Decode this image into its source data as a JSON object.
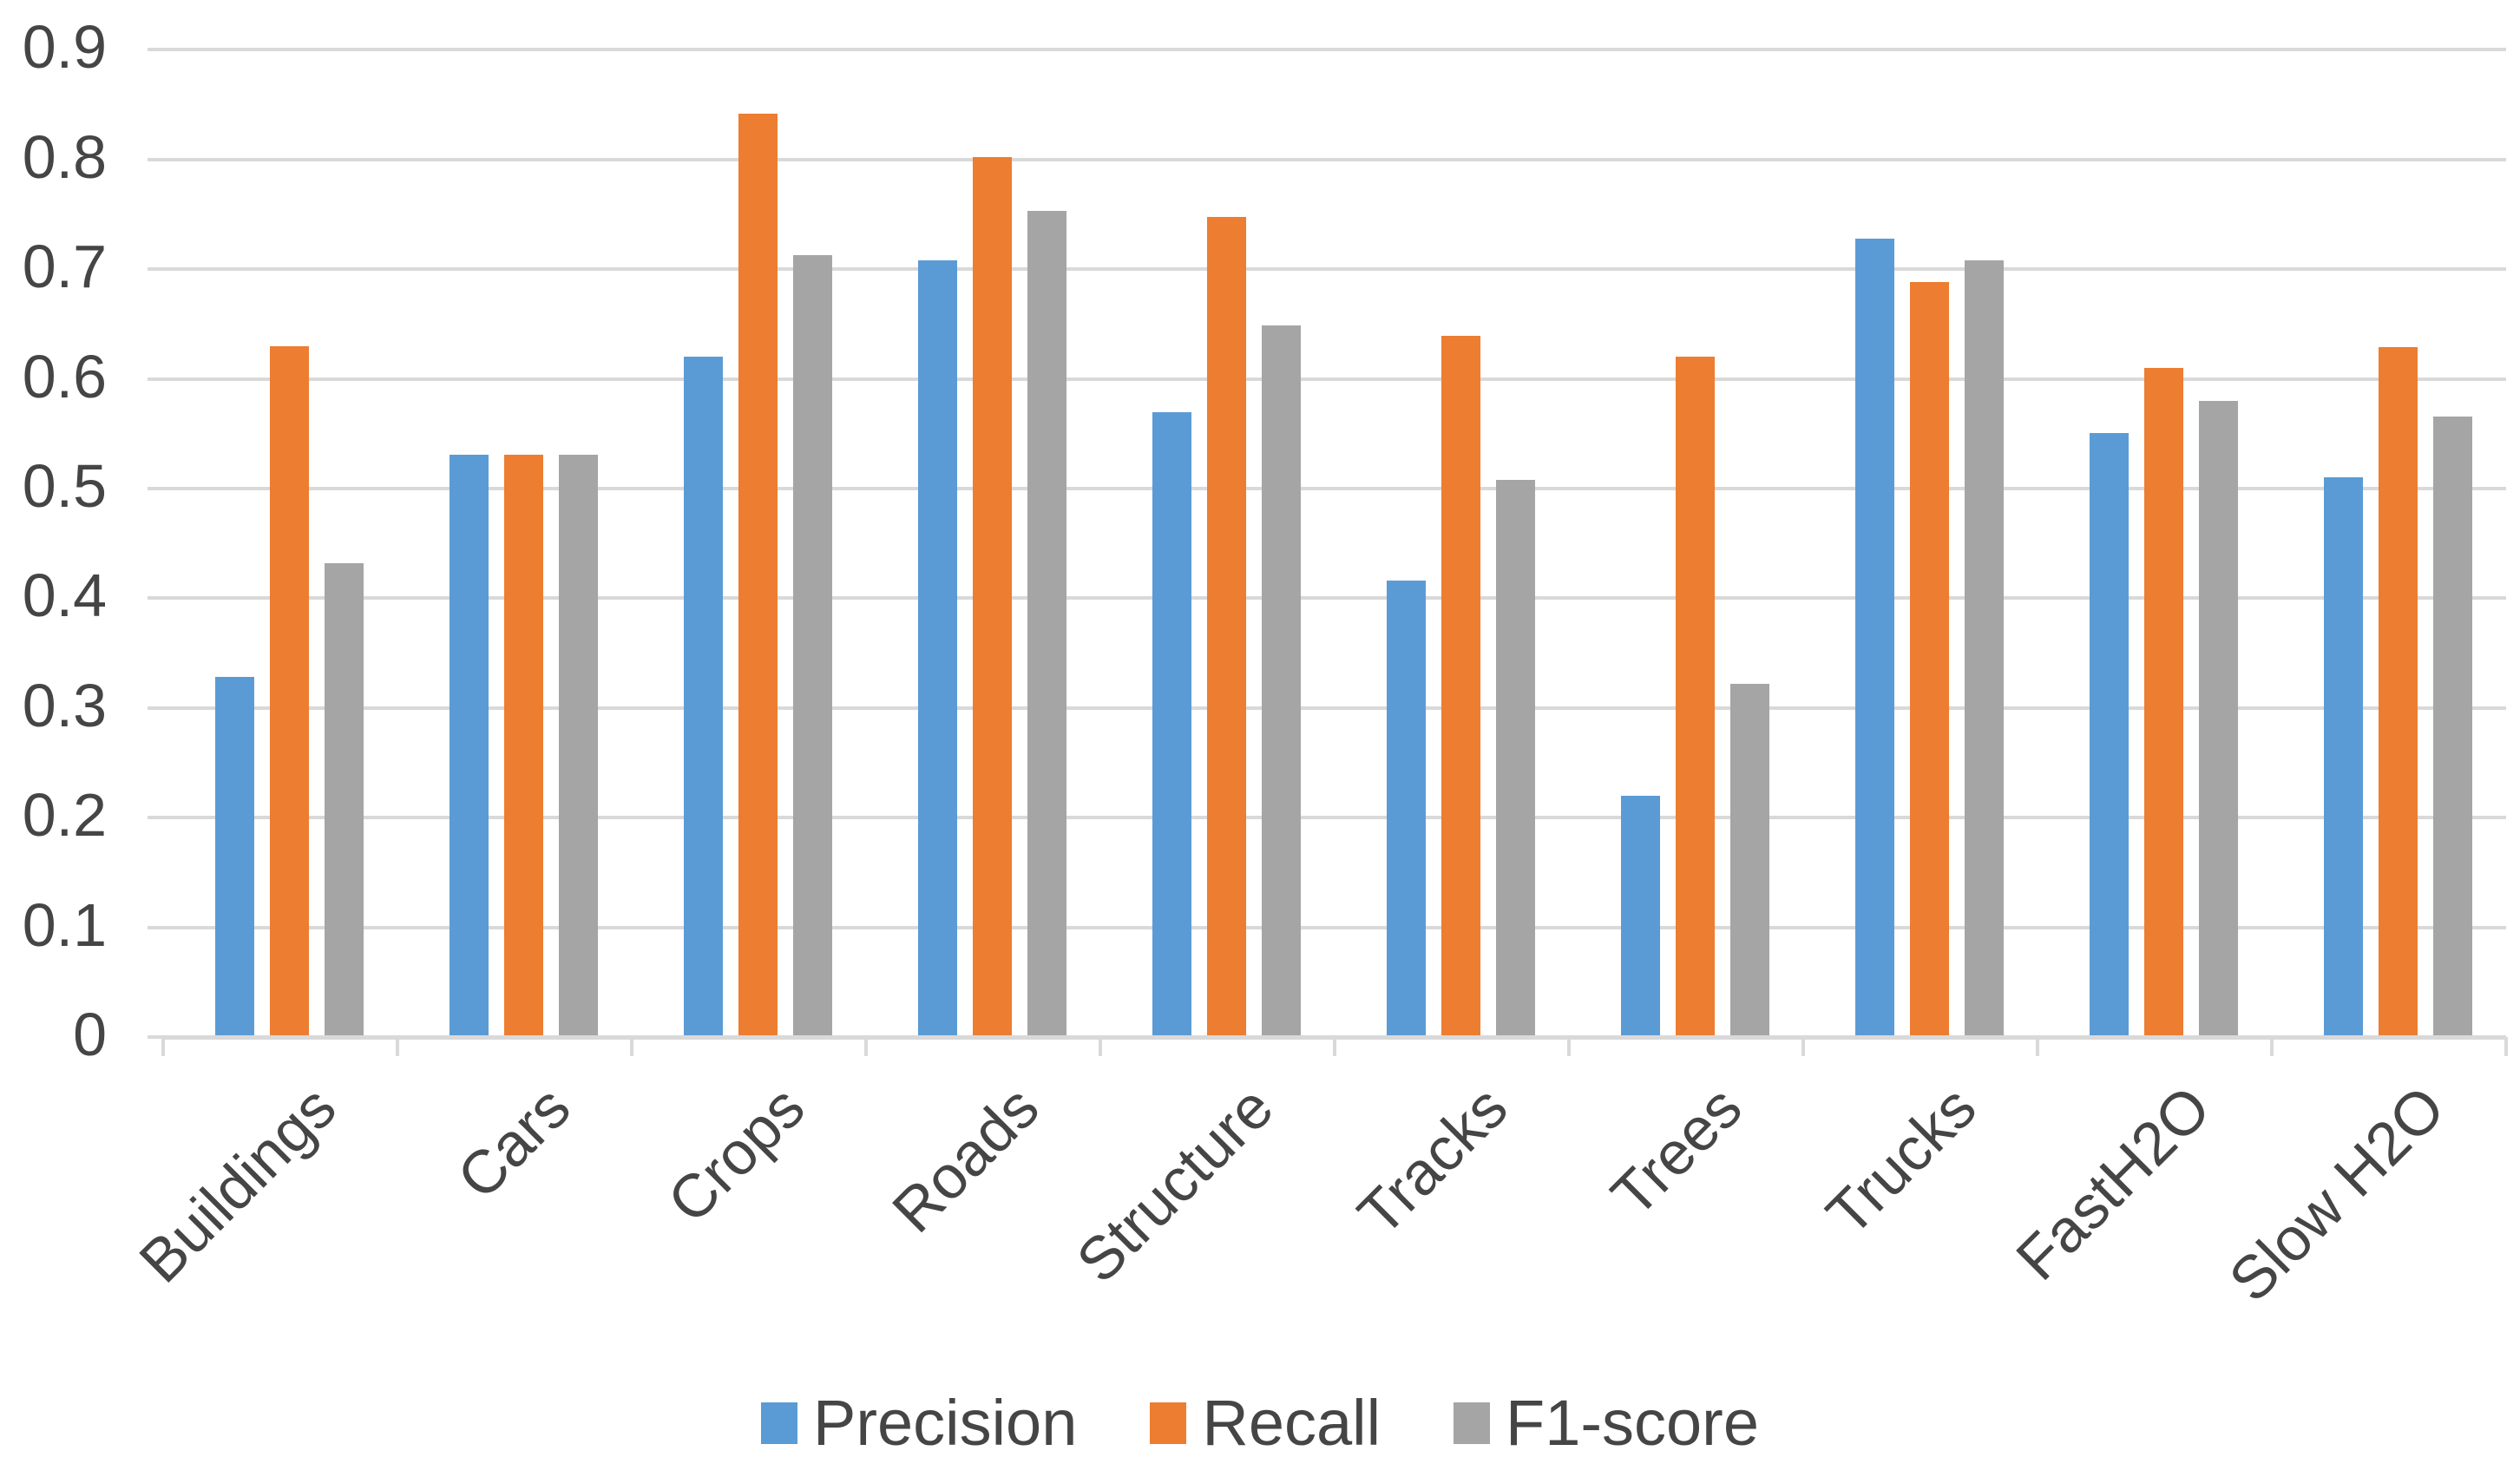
{
  "chart_data": {
    "type": "bar",
    "title": "",
    "xlabel": "",
    "ylabel": "",
    "categories": [
      "Buildings",
      "Cars",
      "Crops",
      "Roads",
      "Structure",
      "Tracks",
      "Trees",
      "Trucks",
      "FastH2O",
      "Slow H2O"
    ],
    "series": [
      {
        "name": "Precision",
        "color": "#5B9BD5",
        "values": [
          0.328,
          0.531,
          0.62,
          0.708,
          0.57,
          0.416,
          0.22,
          0.728,
          0.551,
          0.51
        ]
      },
      {
        "name": "Recall",
        "color": "#ED7D31",
        "values": [
          0.63,
          0.531,
          0.842,
          0.802,
          0.748,
          0.639,
          0.62,
          0.688,
          0.61,
          0.629
        ]
      },
      {
        "name": "F1-score",
        "color": "#A5A5A5",
        "values": [
          0.432,
          0.531,
          0.713,
          0.753,
          0.649,
          0.508,
          0.322,
          0.708,
          0.58,
          0.566
        ]
      }
    ],
    "ylim": [
      0,
      0.9
    ],
    "yticks": [
      {
        "value": 0.0,
        "label": "0"
      },
      {
        "value": 0.1,
        "label": "0.1"
      },
      {
        "value": 0.2,
        "label": "0.2"
      },
      {
        "value": 0.3,
        "label": "0.3"
      },
      {
        "value": 0.4,
        "label": "0.4"
      },
      {
        "value": 0.5,
        "label": "0.5"
      },
      {
        "value": 0.6,
        "label": "0.6"
      },
      {
        "value": 0.7,
        "label": "0.7"
      },
      {
        "value": 0.8,
        "label": "0.8"
      },
      {
        "value": 0.9,
        "label": "0.9"
      }
    ],
    "grid": "horizontal",
    "gridline_color": "#D9D9D9",
    "axis_text_color": "#454545",
    "legend_position": "bottom",
    "background_color": "#FFFFFF"
  }
}
